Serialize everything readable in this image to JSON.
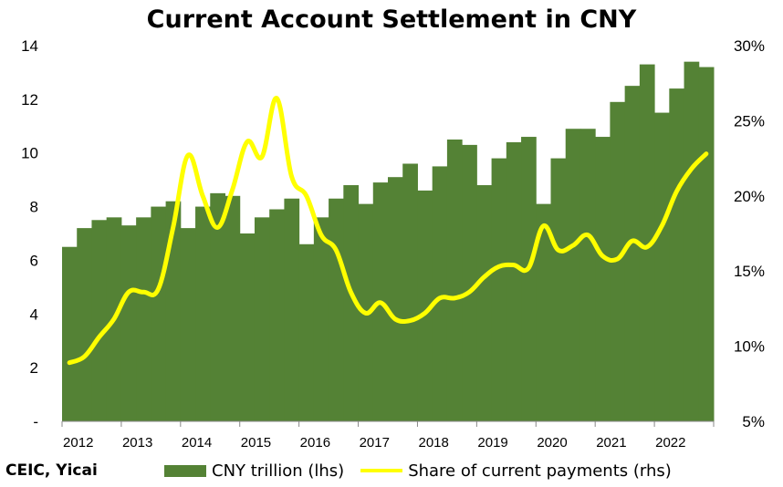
{
  "source_note": "CEIC, Yicai",
  "legend": {
    "bars_label": "CNY trillion (lhs)",
    "line_label": "Share of current payments (rhs)"
  },
  "colors": {
    "bars": "#548235",
    "line": "#FFFF00",
    "axis": "#888888"
  },
  "chart_data": {
    "type": "bar",
    "title": "Current Account Settlement in CNY",
    "xlabel": "",
    "ylabel": "",
    "y2label": "",
    "ylim": [
      0,
      14
    ],
    "y2lim": [
      5,
      30
    ],
    "yticks": [
      "-",
      "2",
      "4",
      "6",
      "8",
      "10",
      "12",
      "14"
    ],
    "y2ticks": [
      "5%",
      "10%",
      "15%",
      "20%",
      "25%",
      "30%"
    ],
    "xtick_labels": [
      "2012",
      "2013",
      "2014",
      "2015",
      "2016",
      "2017",
      "2018",
      "2019",
      "2020",
      "2021",
      "2022"
    ],
    "categories": [
      "2012Q1",
      "2012Q2",
      "2012Q3",
      "2012Q4",
      "2013Q1",
      "2013Q2",
      "2013Q3",
      "2013Q4",
      "2014Q1",
      "2014Q2",
      "2014Q3",
      "2014Q4",
      "2015Q1",
      "2015Q2",
      "2015Q3",
      "2015Q4",
      "2016Q1",
      "2016Q2",
      "2016Q3",
      "2016Q4",
      "2017Q1",
      "2017Q2",
      "2017Q3",
      "2017Q4",
      "2018Q1",
      "2018Q2",
      "2018Q3",
      "2018Q4",
      "2019Q1",
      "2019Q2",
      "2019Q3",
      "2019Q4",
      "2020Q1",
      "2020Q2",
      "2020Q3",
      "2020Q4",
      "2021Q1",
      "2021Q2",
      "2021Q3",
      "2021Q4",
      "2022Q1",
      "2022Q2",
      "2022Q3",
      "2022Q4"
    ],
    "series": [
      {
        "name": "CNY trillion (lhs)",
        "type": "bar",
        "axis": "left",
        "values": [
          6.5,
          7.2,
          7.5,
          7.6,
          7.3,
          7.6,
          8.0,
          8.2,
          7.2,
          8.0,
          8.5,
          8.4,
          7.0,
          7.6,
          7.9,
          8.3,
          6.6,
          7.6,
          8.3,
          8.8,
          8.1,
          8.9,
          9.1,
          9.6,
          8.6,
          9.5,
          10.5,
          10.3,
          8.8,
          9.8,
          10.4,
          10.6,
          8.1,
          9.8,
          10.9,
          10.9,
          10.6,
          11.9,
          12.5,
          13.3,
          11.5,
          12.4,
          13.4,
          13.2
        ]
      },
      {
        "name": "Share of current payments (rhs)",
        "type": "line",
        "axis": "right",
        "values": [
          8.9,
          9.3,
          10.6,
          11.8,
          13.6,
          13.6,
          13.8,
          17.9,
          22.7,
          20.0,
          17.9,
          20.4,
          23.6,
          22.6,
          26.5,
          21.3,
          20.0,
          17.4,
          16.4,
          13.6,
          12.2,
          12.9,
          11.8,
          11.7,
          12.2,
          13.2,
          13.2,
          13.6,
          14.6,
          15.3,
          15.4,
          15.2,
          18.0,
          16.4,
          16.7,
          17.4,
          16.0,
          15.8,
          17.0,
          16.6,
          18.0,
          20.3,
          21.8,
          22.8
        ]
      }
    ],
    "grid": false,
    "legend_position": "bottom"
  }
}
